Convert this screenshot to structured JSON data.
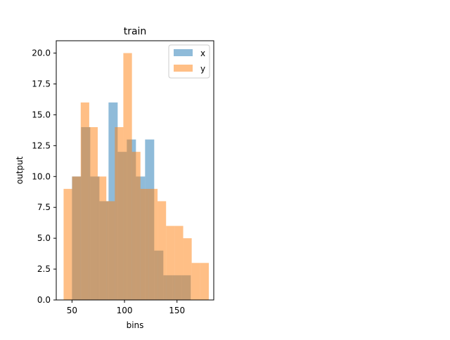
{
  "chart_data": {
    "type": "histogram",
    "title": "train",
    "xlabel": "bins",
    "ylabel": "output",
    "xlim": [
      35,
      185
    ],
    "ylim": [
      0,
      21
    ],
    "grid": false,
    "legend_position": "top-right",
    "x_ticks": [
      50,
      100,
      150
    ],
    "x_tick_labels": [
      "50",
      "100",
      "150"
    ],
    "y_ticks": [
      0,
      2.5,
      5,
      7.5,
      10,
      12.5,
      15,
      17.5,
      20
    ],
    "y_tick_labels": [
      "0.0",
      "2.5",
      "5.0",
      "7.5",
      "10.0",
      "12.5",
      "15.0",
      "17.5",
      "20.0"
    ],
    "series": [
      {
        "name": "x",
        "color": "#1f77b4",
        "alpha": 0.5,
        "bin_edges": [
          50.0,
          58.7,
          67.4,
          76.1,
          84.8,
          93.5,
          102.2,
          110.9,
          119.6,
          128.3,
          137.0,
          145.7,
          154.4,
          163.1
        ],
        "counts": [
          10,
          14,
          10,
          8,
          16,
          12,
          13,
          10,
          13,
          4,
          2,
          2,
          2
        ]
      },
      {
        "name": "y",
        "color": "#ff7f0e",
        "alpha": 0.5,
        "bin_edges": [
          42.0,
          50.1,
          58.3,
          66.4,
          74.5,
          82.7,
          90.8,
          98.9,
          107.1,
          115.2,
          123.3,
          131.5,
          139.6,
          147.7,
          155.9,
          164.0,
          172.1,
          180.3
        ],
        "counts": [
          9,
          10,
          16,
          14,
          10,
          8,
          14,
          20,
          12,
          9,
          9,
          8,
          6,
          6,
          5,
          3,
          3
        ]
      }
    ]
  }
}
